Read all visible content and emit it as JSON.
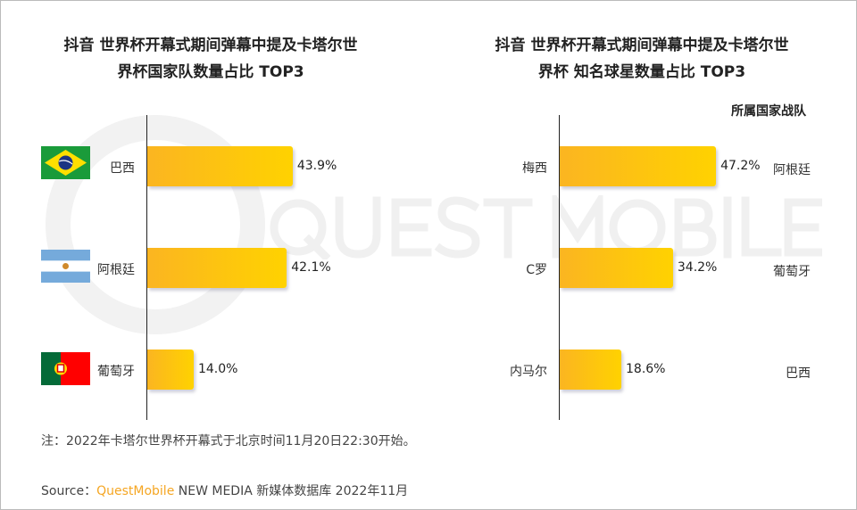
{
  "watermark": "QUEST MOBILE",
  "chart_data": [
    {
      "type": "bar",
      "orientation": "horizontal",
      "title": "抖音 世界杯开幕式期间弹幕中提及卡塔尔世界杯国家队数量占比 TOP3",
      "title_lines": [
        "抖音 世界杯开幕式期间弹幕中提及卡塔尔世",
        "界杯国家队数量占比 TOP3"
      ],
      "categories": [
        "巴西",
        "阿根廷",
        "葡萄牙"
      ],
      "values": [
        43.9,
        42.1,
        14.0
      ],
      "labels": [
        "43.9%",
        "42.1%",
        "14.0%"
      ],
      "flags": [
        "brazil-flag",
        "argentina-flag",
        "portugal-flag"
      ],
      "xlim": [
        0,
        100
      ],
      "bar_color": [
        "#fbb521",
        "#ffd200"
      ]
    },
    {
      "type": "bar",
      "orientation": "horizontal",
      "title": "抖音 世界杯开幕式期间弹幕中提及卡塔尔世界杯 知名球星数量占比 TOP3",
      "title_lines": [
        "抖音 世界杯开幕式期间弹幕中提及卡塔尔世",
        "界杯 知名球星数量占比 TOP3"
      ],
      "categories": [
        "梅西",
        "C罗",
        "内马尔"
      ],
      "values": [
        47.2,
        34.2,
        18.6
      ],
      "labels": [
        "47.2%",
        "34.2%",
        "18.6%"
      ],
      "team_header": "所属国家战队",
      "teams": [
        "阿根廷",
        "葡萄牙",
        "巴西"
      ],
      "xlim": [
        0,
        100
      ],
      "bar_color": [
        "#fbb521",
        "#ffd200"
      ]
    }
  ],
  "note": "注：2022年卡塔尔世界杯开幕式于北京时间11月20日22:30开始。",
  "source": {
    "prefix": "Source：",
    "brand": "QuestMobile",
    "rest": " NEW MEDIA 新媒体数据库 2022年11月",
    "brand_color": "#f5a623"
  }
}
